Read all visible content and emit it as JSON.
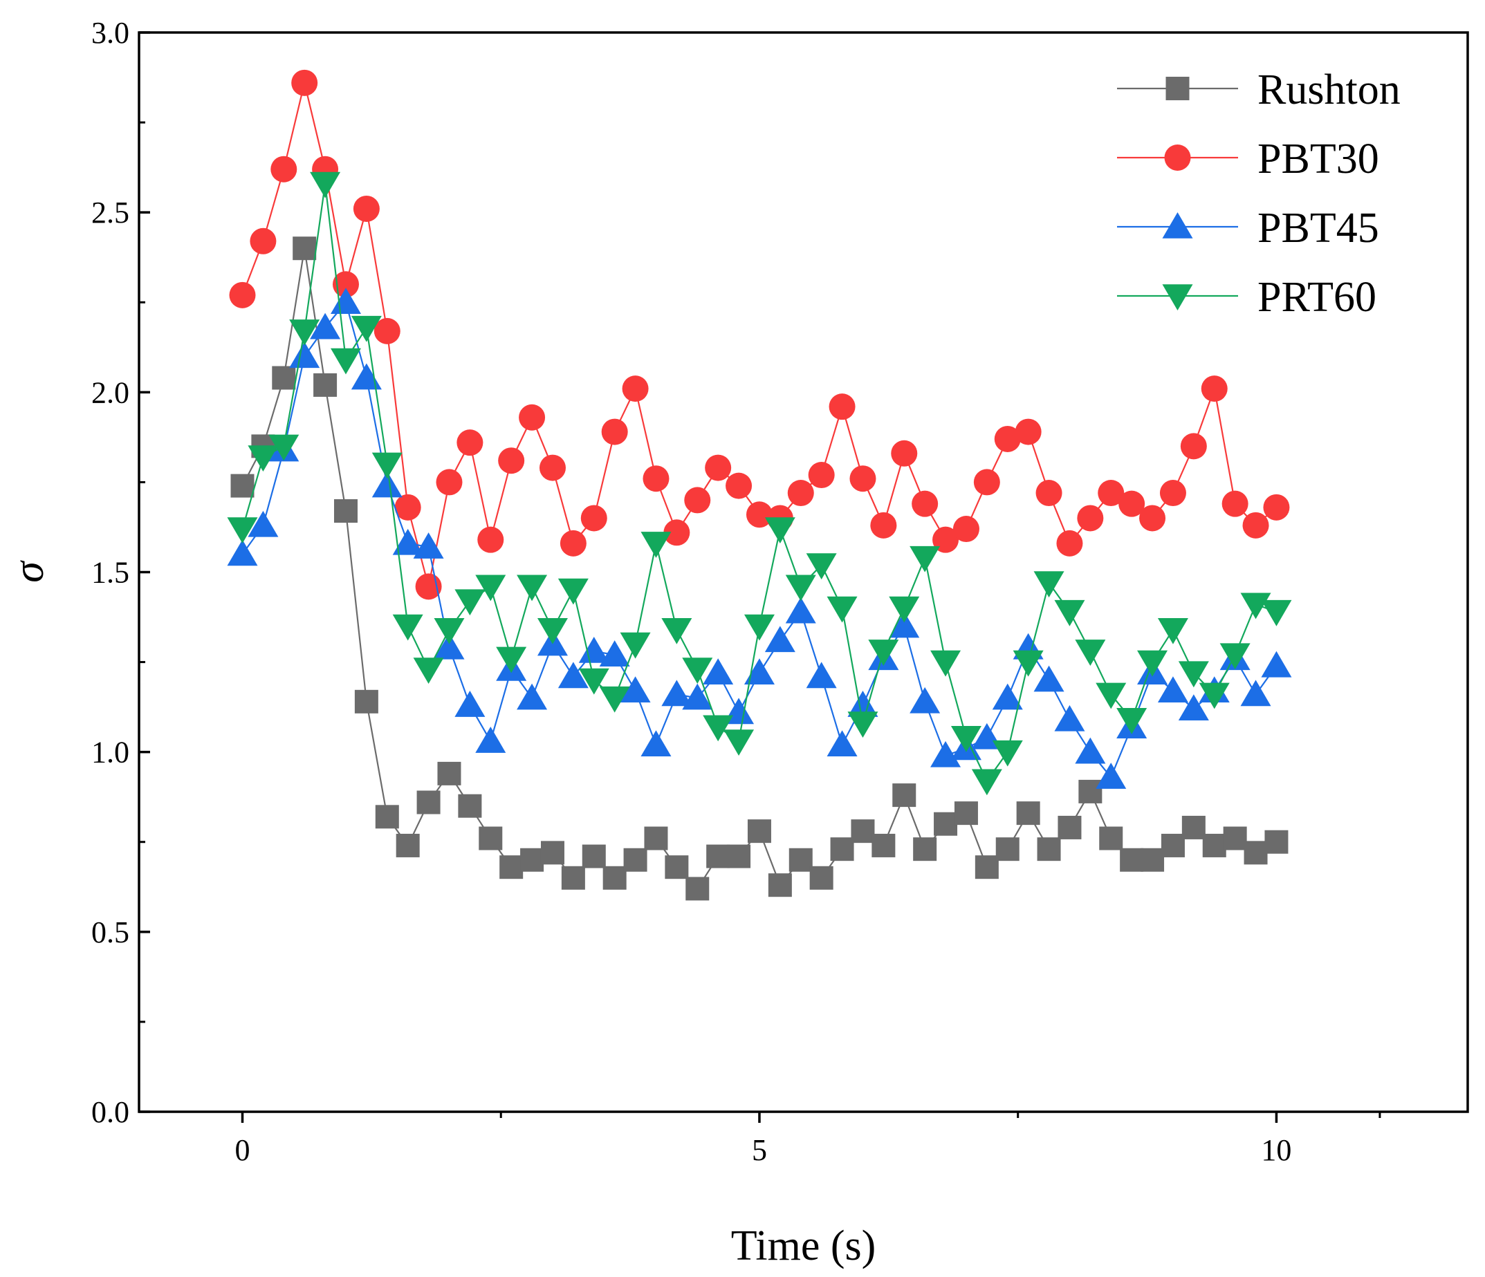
{
  "chart_data": {
    "type": "line",
    "title": "",
    "xlabel": "Time (s)",
    "ylabel": "σ",
    "xlim": [
      -1,
      11.85
    ],
    "ylim": [
      0,
      3.0
    ],
    "x_ticks": [
      0,
      5,
      10
    ],
    "x_tick_labels": [
      "0",
      "5",
      "10"
    ],
    "y_ticks": [
      0,
      0.5,
      1.0,
      1.5,
      2.0,
      2.5,
      3.0
    ],
    "y_tick_labels": [
      "0.0",
      "0.5",
      "1.0",
      "1.5",
      "2.0",
      "2.5",
      "3.0"
    ],
    "grid": false,
    "legend_position": "top-right",
    "x": [
      0,
      0.2,
      0.4,
      0.6,
      0.8,
      1.0,
      1.2,
      1.4,
      1.6,
      1.8,
      2.0,
      2.2,
      2.4,
      2.6,
      2.8,
      3.0,
      3.2,
      3.4,
      3.6,
      3.8,
      4.0,
      4.2,
      4.4,
      4.6,
      4.8,
      5.0,
      5.2,
      5.4,
      5.6,
      5.8,
      6.0,
      6.2,
      6.4,
      6.6,
      6.8,
      7.0,
      7.2,
      7.4,
      7.6,
      7.8,
      8.0,
      8.2,
      8.4,
      8.6,
      8.8,
      9.0,
      9.2,
      9.4,
      9.6,
      9.8,
      10.0
    ],
    "series": [
      {
        "name": "Rushton",
        "color": "#6b6b6b",
        "marker": "square",
        "values": [
          1.74,
          1.85,
          2.04,
          2.4,
          2.02,
          1.67,
          1.14,
          0.82,
          0.74,
          0.86,
          0.94,
          0.85,
          0.76,
          0.68,
          0.7,
          0.72,
          0.65,
          0.71,
          0.65,
          0.7,
          0.76,
          0.68,
          0.62,
          0.71,
          0.71,
          0.78,
          0.63,
          0.7,
          0.65,
          0.73,
          0.78,
          0.74,
          0.88,
          0.73,
          0.8,
          0.83,
          0.68,
          0.73,
          0.83,
          0.73,
          0.79,
          0.89,
          0.76,
          0.7,
          0.7,
          0.74,
          0.79,
          0.74,
          0.76,
          0.72,
          0.75
        ]
      },
      {
        "name": "PBT30",
        "color": "#f83a3a",
        "marker": "circle",
        "values": [
          2.27,
          2.42,
          2.62,
          2.86,
          2.62,
          2.3,
          2.51,
          2.17,
          1.68,
          1.46,
          1.75,
          1.86,
          1.59,
          1.81,
          1.93,
          1.79,
          1.58,
          1.65,
          1.89,
          2.01,
          1.76,
          1.61,
          1.7,
          1.79,
          1.74,
          1.66,
          1.65,
          1.72,
          1.77,
          1.96,
          1.76,
          1.63,
          1.83,
          1.69,
          1.59,
          1.62,
          1.75,
          1.87,
          1.89,
          1.72,
          1.58,
          1.65,
          1.72,
          1.69,
          1.65,
          1.72,
          1.85,
          2.01,
          1.69,
          1.63,
          1.68
        ]
      },
      {
        "name": "PBT45",
        "color": "#1c6ee6",
        "marker": "triangle-up",
        "values": [
          1.55,
          1.63,
          1.84,
          2.1,
          2.18,
          2.25,
          2.04,
          1.74,
          1.58,
          1.57,
          1.29,
          1.13,
          1.03,
          1.23,
          1.15,
          1.3,
          1.21,
          1.28,
          1.27,
          1.17,
          1.02,
          1.16,
          1.15,
          1.22,
          1.11,
          1.22,
          1.31,
          1.39,
          1.21,
          1.02,
          1.13,
          1.26,
          1.35,
          1.14,
          0.99,
          1.01,
          1.04,
          1.15,
          1.29,
          1.2,
          1.09,
          1.0,
          0.93,
          1.07,
          1.22,
          1.17,
          1.12,
          1.17,
          1.26,
          1.16,
          1.24
        ]
      },
      {
        "name": "PRT60",
        "color": "#13a85c",
        "marker": "triangle-down",
        "values": [
          1.62,
          1.82,
          1.85,
          2.17,
          2.58,
          2.09,
          2.18,
          1.8,
          1.35,
          1.23,
          1.34,
          1.42,
          1.46,
          1.26,
          1.46,
          1.34,
          1.45,
          1.2,
          1.15,
          1.3,
          1.58,
          1.34,
          1.23,
          1.07,
          1.03,
          1.35,
          1.62,
          1.46,
          1.52,
          1.4,
          1.08,
          1.28,
          1.4,
          1.54,
          1.25,
          1.04,
          0.92,
          1.0,
          1.25,
          1.47,
          1.39,
          1.28,
          1.16,
          1.09,
          1.25,
          1.34,
          1.22,
          1.16,
          1.27,
          1.41,
          1.39
        ]
      }
    ]
  }
}
